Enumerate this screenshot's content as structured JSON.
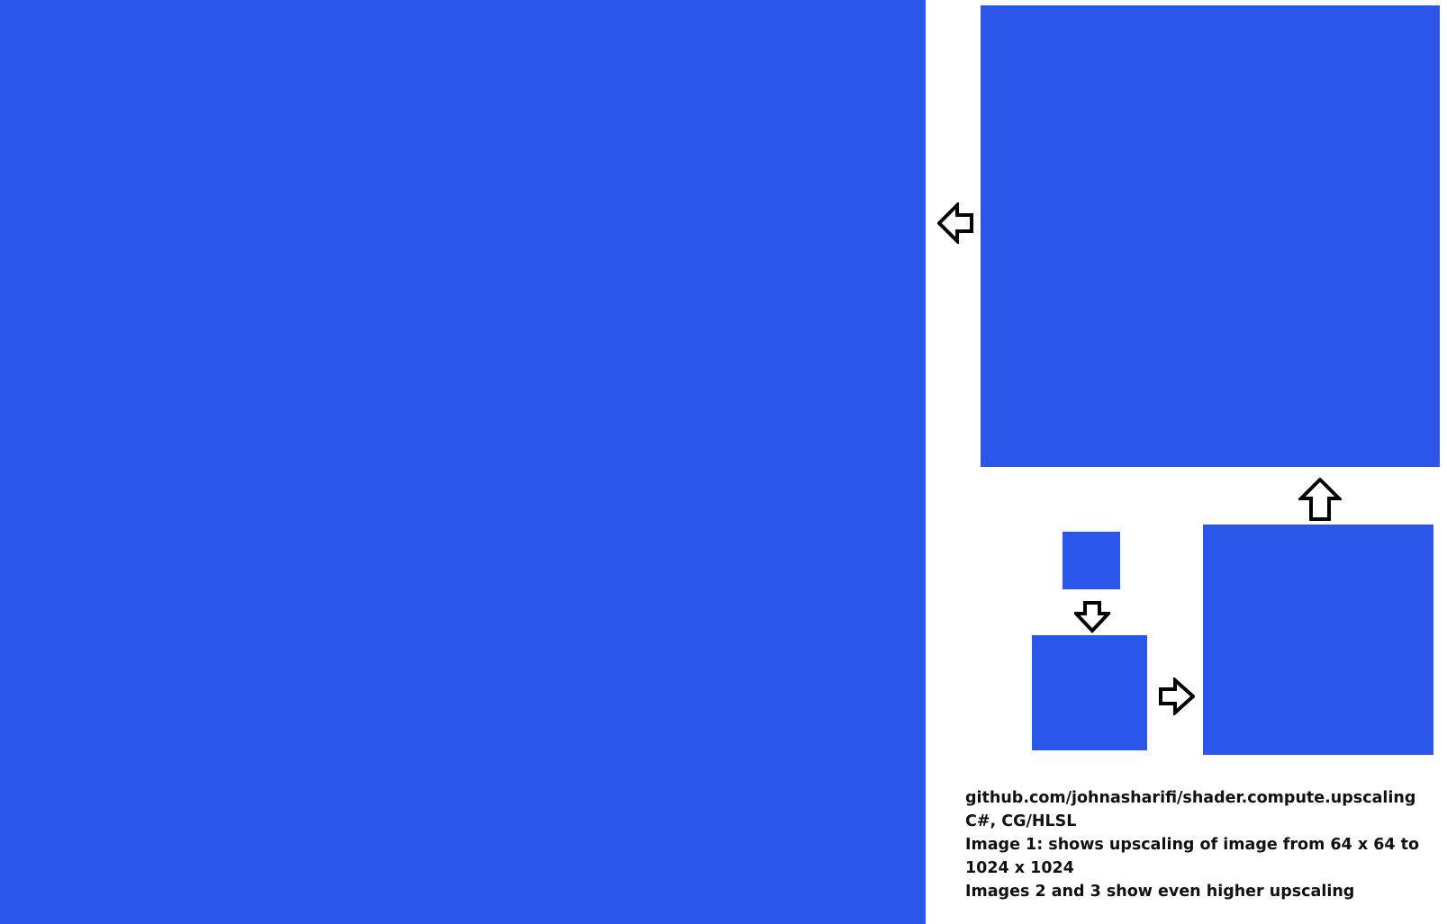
{
  "colors": {
    "water": "#2a56ea",
    "light_green": "#41c22b",
    "dark_green": "#2a7314",
    "yellow": "#eedd14",
    "orange": "#e89014",
    "brown": "#4a1f05",
    "teal": "#0b5a5a",
    "cyan": "#1e82b4"
  },
  "panels": [
    {
      "name": "image-1-upscaled-1024",
      "seed": 11
    },
    {
      "name": "image-3-upscaled-top",
      "seed": 23
    },
    {
      "name": "source-64",
      "seed": 37
    },
    {
      "name": "upscaled-small",
      "seed": 41
    },
    {
      "name": "image-2-upscaled-mid",
      "seed": 53
    }
  ],
  "arrows": [
    {
      "name": "arrow-left-icon",
      "direction": "left"
    },
    {
      "name": "arrow-up-icon",
      "direction": "up"
    },
    {
      "name": "arrow-down-icon",
      "direction": "down"
    },
    {
      "name": "arrow-right-icon",
      "direction": "right"
    }
  ],
  "caption": {
    "line1": "github.com/johnasharifi/shader.compute.upscaling",
    "line2": "C#, CG/HLSL",
    "line3": "Image 1: shows upscaling of image from 64 x 64 to 1024 x 1024",
    "line4": "Images 2 and 3 show even higher upscaling"
  }
}
